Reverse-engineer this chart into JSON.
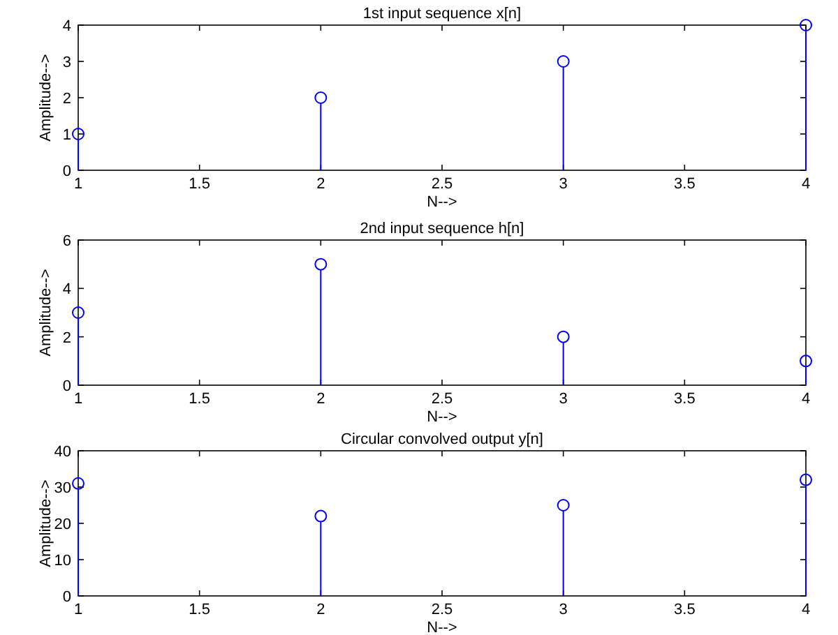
{
  "chart_data": [
    {
      "type": "lollipop",
      "title": "1st input sequence x[n]",
      "xlabel": "N-->",
      "ylabel": "Amplitude-->",
      "x": [
        1,
        2,
        3,
        4
      ],
      "values": [
        1,
        2,
        3,
        4
      ],
      "color": "#0000ff",
      "marker": "circle",
      "xlim": [
        1,
        4
      ],
      "xticks": [
        1,
        1.5,
        2,
        2.5,
        3,
        3.5,
        4
      ],
      "ylim": [
        0,
        4
      ],
      "yticks": [
        0,
        1,
        2,
        3,
        4
      ]
    },
    {
      "type": "lollipop",
      "title": "2nd input sequence h[n]",
      "xlabel": "N-->",
      "ylabel": "Amplitude-->",
      "x": [
        1,
        2,
        3,
        4
      ],
      "values": [
        3,
        5,
        2,
        1
      ],
      "color": "#0000ff",
      "marker": "circle",
      "xlim": [
        1,
        4
      ],
      "xticks": [
        1,
        1.5,
        2,
        2.5,
        3,
        3.5,
        4
      ],
      "ylim": [
        0,
        6
      ],
      "yticks": [
        0,
        2,
        4,
        6
      ]
    },
    {
      "type": "lollipop",
      "title": "Circular convolved output y[n]",
      "xlabel": "N-->",
      "ylabel": "Amplitude-->",
      "x": [
        1,
        2,
        3,
        4
      ],
      "values": [
        31,
        22,
        25,
        32
      ],
      "color": "#0000ff",
      "marker": "circle",
      "xlim": [
        1,
        4
      ],
      "xticks": [
        1,
        1.5,
        2,
        2.5,
        3,
        3.5,
        4
      ],
      "ylim": [
        0,
        40
      ],
      "yticks": [
        0,
        10,
        20,
        30,
        40
      ]
    }
  ]
}
